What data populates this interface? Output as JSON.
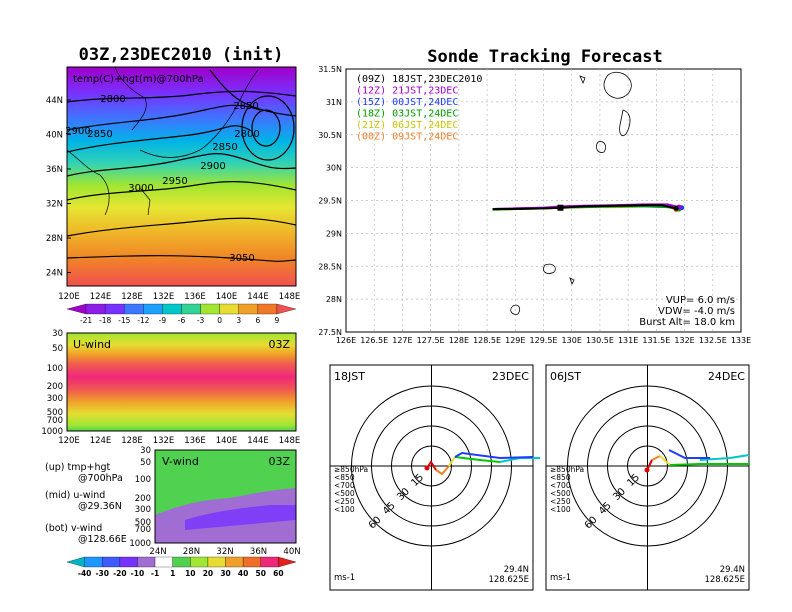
{
  "left_panel": {
    "title": "03Z,23DEC2010 (init)",
    "map_label": "temp(C)+hgt(m)@700hPa",
    "lat_ticks": [
      "44N",
      "40N",
      "36N",
      "32N",
      "28N",
      "24N"
    ],
    "lon_ticks": [
      "120E",
      "124E",
      "128E",
      "132E",
      "136E",
      "140E",
      "144E",
      "148E"
    ],
    "contour_labels": [
      "2800",
      "2850",
      "2900",
      "2950",
      "3000",
      "3050",
      "2850",
      "2800",
      "2850",
      "2900"
    ],
    "temp_colorbar": [
      "-21",
      "-18",
      "-15",
      "-12",
      "-9",
      "-6",
      "-3",
      "0",
      "3",
      "6",
      "9"
    ],
    "uwind": {
      "title": "U-wind",
      "time": "03Z",
      "p_ticks": [
        "30",
        "50",
        "100",
        "200",
        "300",
        "500",
        "700",
        "1000"
      ],
      "lon_ticks": [
        "120E",
        "124E",
        "128E",
        "132E",
        "136E",
        "140E",
        "144E",
        "148E"
      ]
    },
    "vwind": {
      "title": "V-wind",
      "time": "03Z",
      "p_ticks": [
        "30",
        "50",
        "100",
        "200",
        "300",
        "500",
        "700",
        "1000"
      ],
      "lat_ticks": [
        "24N",
        "28N",
        "32N",
        "36N",
        "40N"
      ]
    },
    "legend_lines": [
      "(up) tmp+hgt",
      "@700hPa",
      "(mid) u-wind",
      "@29.36N",
      "(bot) v-wind",
      "@128.66E"
    ],
    "wind_colorbar": [
      "-40",
      "-30",
      "-20",
      "-10",
      "-1",
      "1",
      "10",
      "20",
      "30",
      "40",
      "50",
      "60"
    ]
  },
  "right_panel": {
    "title": "Sonde Tracking Forecast",
    "lat_ticks": [
      "31.5N",
      "31N",
      "30.5N",
      "30N",
      "29.5N",
      "29N",
      "28.5N",
      "28N",
      "27.5N"
    ],
    "lon_ticks": [
      "126E",
      "126.5E",
      "127E",
      "127.5E",
      "128E",
      "128.5E",
      "129E",
      "129.5E",
      "130E",
      "130.5E",
      "131E",
      "131.5E",
      "132E",
      "132.5E",
      "133E"
    ],
    "legend": [
      {
        "text": "(09Z)  18JST,23DEC2010",
        "color": "#000000"
      },
      {
        "text": "(12Z)  21JST,23DEC",
        "color": "#a000c8"
      },
      {
        "text": "(15Z)  00JST,24DEC",
        "color": "#1e3cff"
      },
      {
        "text": "(18Z)  03JST,24DEC",
        "color": "#00a000"
      },
      {
        "text": "(21Z)  06JST,24DEC",
        "color": "#c8c800"
      },
      {
        "text": "(00Z)  09JST,24DEC",
        "color": "#f08228"
      }
    ],
    "params": [
      "VUP=   6.0  m/s",
      "VDW=  -4.0  m/s",
      "Burst Alt=  18.0  km"
    ],
    "hodographs": [
      {
        "time": "18JST",
        "date": "23DEC",
        "lat": "29.4N",
        "lon": "128.625E",
        "unit": "ms-1"
      },
      {
        "time": "06JST",
        "date": "24DEC",
        "lat": "29.4N",
        "lon": "128.625E",
        "unit": "ms-1"
      }
    ],
    "ring_labels": [
      "15",
      "30",
      "45",
      "60"
    ],
    "level_legend": [
      {
        "text": "≥850hPa",
        "color": "#e00000"
      },
      {
        "text": "<850",
        "color": "#f08228"
      },
      {
        "text": "<700",
        "color": "#e6dc32"
      },
      {
        "text": "<500",
        "color": "#00c800"
      },
      {
        "text": "<250",
        "color": "#00c8c8"
      },
      {
        "text": "<100",
        "color": "#1e3cff"
      }
    ]
  },
  "chart_data": {
    "type": "line",
    "title": "Sonde Tracking Forecast",
    "xlabel": "",
    "ylabel": "",
    "xlim": [
      126,
      133
    ],
    "ylim": [
      27.5,
      31.5
    ],
    "series": [
      {
        "name": "(09Z) 18JST,23DEC2010",
        "x": [
          128.6,
          129.0,
          129.5,
          129.8,
          130.2,
          130.8,
          131.3,
          131.6,
          131.85
        ],
        "y": [
          29.37,
          29.37,
          29.38,
          29.39,
          29.41,
          29.42,
          29.43,
          29.43,
          29.38
        ]
      },
      {
        "name": "(12Z) 21JST,23DEC",
        "x": [
          128.6,
          129.0,
          129.5,
          129.8,
          130.2,
          130.8,
          131.3,
          131.7,
          131.9
        ],
        "y": [
          29.37,
          29.38,
          29.39,
          29.41,
          29.42,
          29.43,
          29.44,
          29.44,
          29.4
        ]
      },
      {
        "name": "(15Z) 00JST,24DEC",
        "x": [
          128.6,
          129.0,
          129.5,
          129.8,
          130.2,
          130.8,
          131.3,
          131.7,
          131.95
        ],
        "y": [
          29.37,
          29.38,
          29.39,
          29.4,
          29.41,
          29.42,
          29.43,
          29.42,
          29.39
        ]
      },
      {
        "name": "(18Z) 03JST,24DEC",
        "x": [
          128.6,
          129.0,
          129.5,
          129.8,
          130.2,
          130.8,
          131.3,
          131.7,
          131.9
        ],
        "y": [
          29.36,
          29.37,
          29.38,
          29.39,
          29.4,
          29.41,
          29.41,
          29.4,
          29.37
        ]
      },
      {
        "name": "(21Z) 06JST,24DEC",
        "x": [
          128.6,
          129.0,
          129.5,
          129.8,
          130.2,
          130.8,
          131.3,
          131.7,
          131.9
        ],
        "y": [
          29.36,
          29.37,
          29.38,
          29.39,
          29.4,
          29.4,
          29.41,
          29.4,
          29.37
        ]
      },
      {
        "name": "(00Z) 09JST,24DEC",
        "x": [
          128.6,
          129.0,
          129.5,
          129.8,
          130.2,
          130.8,
          131.3,
          131.7,
          131.85
        ],
        "y": [
          29.36,
          29.37,
          29.38,
          29.39,
          29.4,
          29.41,
          29.42,
          29.41,
          29.36
        ]
      }
    ],
    "grid": true
  }
}
